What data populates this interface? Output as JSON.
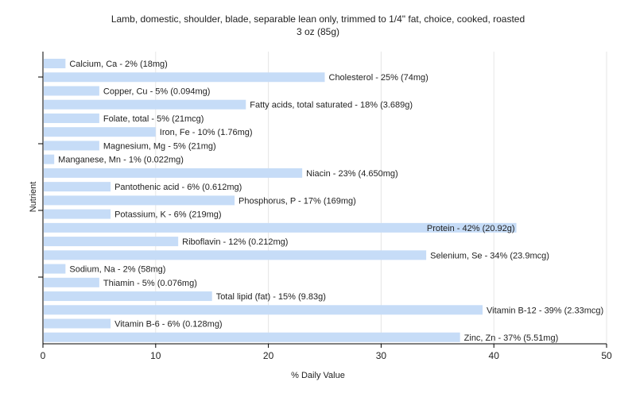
{
  "chart_data": {
    "type": "bar",
    "orientation": "horizontal",
    "title": "Lamb, domestic, shoulder, blade, separable lean only, trimmed to 1/4\" fat, choice, cooked, roasted",
    "subtitle": "3 oz (85g)",
    "xlabel": "% Daily Value",
    "ylabel": "Nutrient",
    "xlim": [
      0,
      50
    ],
    "xticks": [
      "0",
      "10",
      "20",
      "30",
      "40",
      "50"
    ],
    "grid": "vertical",
    "bar_color": "#c6dcf7",
    "categories": [
      "Calcium, Ca",
      "Cholesterol",
      "Copper, Cu",
      "Fatty acids, total saturated",
      "Folate, total",
      "Iron, Fe",
      "Magnesium, Mg",
      "Manganese, Mn",
      "Niacin",
      "Pantothenic acid",
      "Phosphorus, P",
      "Potassium, K",
      "Protein",
      "Riboflavin",
      "Selenium, Se",
      "Sodium, Na",
      "Thiamin",
      "Total lipid (fat)",
      "Vitamin B-12",
      "Vitamin B-6",
      "Zinc, Zn"
    ],
    "values": [
      2,
      25,
      5,
      18,
      5,
      10,
      5,
      1,
      23,
      6,
      17,
      6,
      42,
      12,
      34,
      2,
      5,
      15,
      39,
      6,
      37
    ],
    "labels": [
      "Calcium, Ca - 2% (18mg)",
      "Cholesterol - 25% (74mg)",
      "Copper, Cu - 5% (0.094mg)",
      "Fatty acids, total saturated - 18% (3.689g)",
      "Folate, total - 5% (21mcg)",
      "Iron, Fe - 10% (1.76mg)",
      "Magnesium, Mg - 5% (21mg)",
      "Manganese, Mn - 1% (0.022mg)",
      "Niacin - 23% (4.650mg)",
      "Pantothenic acid - 6% (0.612mg)",
      "Phosphorus, P - 17% (169mg)",
      "Potassium, K - 6% (219mg)",
      "Protein - 42% (20.92g)",
      "Riboflavin - 12% (0.212mg)",
      "Selenium, Se - 34% (23.9mcg)",
      "Sodium, Na - 2% (58mg)",
      "Thiamin - 5% (0.076mg)",
      "Total lipid (fat) - 15% (9.83g)",
      "Vitamin B-12 - 39% (2.33mcg)",
      "Vitamin B-6 - 6% (0.128mg)",
      "Zinc, Zn - 37% (5.51mg)"
    ]
  }
}
